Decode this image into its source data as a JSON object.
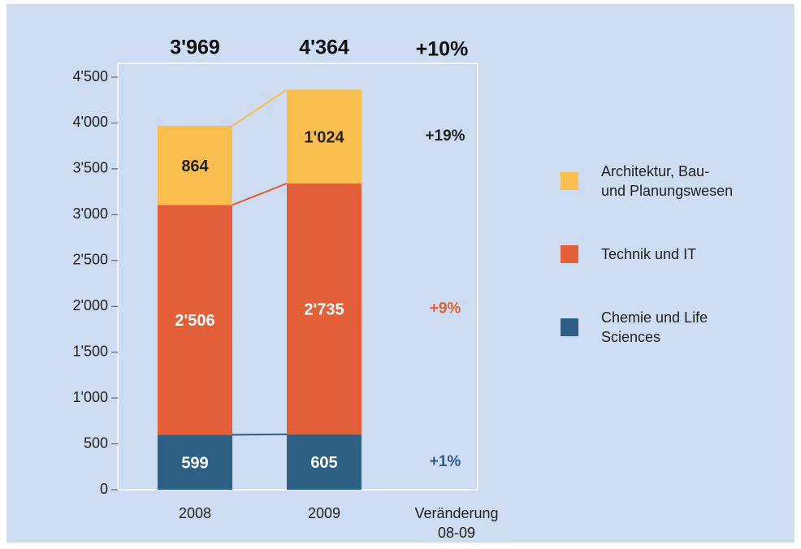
{
  "chart_data": {
    "type": "bar",
    "stacked": true,
    "categories": [
      "2008",
      "2009",
      "Veränderung\n08-09"
    ],
    "series": [
      {
        "name": "Chemie und Life\nSciences",
        "color": "#2e5f84",
        "label_color": "#ffffff",
        "values": [
          599,
          605,
          null
        ],
        "change": 1,
        "change_label": "+1%",
        "change_color": "#2e5f84"
      },
      {
        "name": "Technik und IT",
        "color": "#e35f37",
        "label_color": "#ffffff",
        "values": [
          2506,
          2735,
          null
        ],
        "value_labels": [
          "2'506",
          "2'735",
          null
        ],
        "change": 9,
        "change_label": "+9%",
        "change_color": "#e35f37"
      },
      {
        "name": "Architektur, Bau-\nund Planungswesen",
        "color": "#f9be4e",
        "label_color": "#222222",
        "values": [
          864,
          1024,
          null
        ],
        "value_labels": [
          "864",
          "1'024",
          null
        ],
        "change": 19,
        "change_label": "+19%",
        "change_color": "#222222"
      }
    ],
    "totals": [
      3969,
      4364
    ],
    "total_labels": [
      "3'969",
      "4'364"
    ],
    "total_change": 10,
    "total_change_label": "+10%",
    "ylim": [
      0,
      4500
    ],
    "yticks": [
      0,
      500,
      {
        "value": 1000,
        "label": "1'000"
      },
      {
        "value": 1500,
        "label": "1'500"
      },
      {
        "value": 2000,
        "label": "2'000"
      },
      {
        "value": 2500,
        "label": "2'500"
      },
      {
        "value": 3000,
        "label": "3'000"
      },
      {
        "value": 3500,
        "label": "3'500"
      },
      {
        "value": 4000,
        "label": "4'000"
      },
      {
        "value": 4500,
        "label": "4'500"
      }
    ]
  }
}
